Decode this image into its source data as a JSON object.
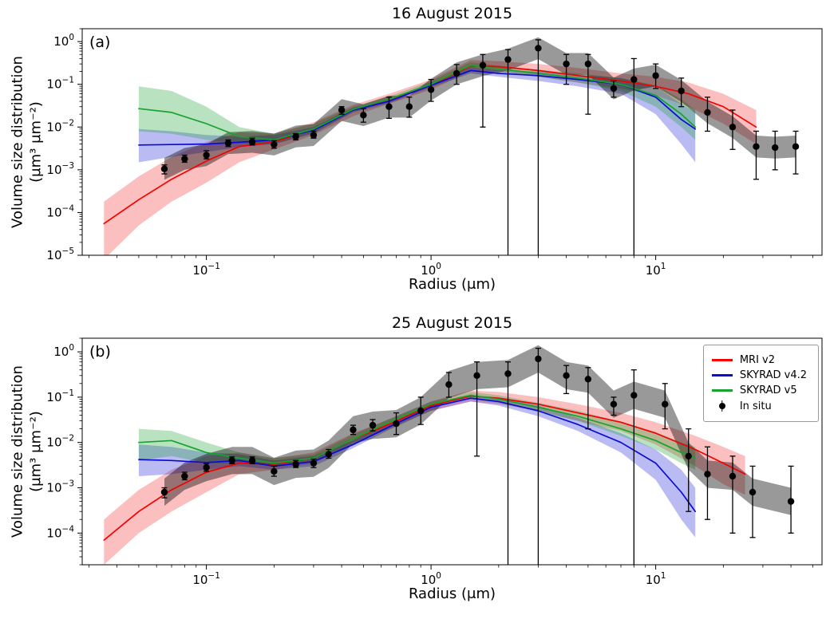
{
  "figure": {
    "background": "#ffffff",
    "ylabel_line1": "Volume size distribution",
    "ylabel_line2": "(μm³ μm⁻²)",
    "xlabel": "Radius (μm)"
  },
  "legend": {
    "position": "upper right",
    "entries": [
      {
        "label": "MRI v2",
        "color": "#f40000",
        "type": "line"
      },
      {
        "label": "SKYRAD v4.2",
        "color": "#0b0bd6",
        "type": "line"
      },
      {
        "label": "SKYRAD v5",
        "color": "#17a32e",
        "type": "line"
      },
      {
        "label": "In situ",
        "color": "#000000",
        "type": "marker"
      }
    ]
  },
  "chart_data": [
    {
      "type": "line",
      "panel_label": "(a)",
      "title": "16 August 2015",
      "xlabel": "Radius (μm)",
      "ylabel": "Volume size distribution (μm³ μm⁻²)",
      "x_scale": "log",
      "y_scale": "log",
      "xlim": [
        0.028,
        55
      ],
      "ylim": [
        1e-05,
        2
      ],
      "grid": false,
      "show_legend": false,
      "series": [
        {
          "name": "MRI v2",
          "color": "#f40000",
          "band_opacity": 0.25,
          "x": [
            0.035,
            0.05,
            0.07,
            0.1,
            0.14,
            0.2,
            0.3,
            0.45,
            0.65,
            1.0,
            1.5,
            2.0,
            3.0,
            4.5,
            7.0,
            10,
            14,
            20,
            28
          ],
          "y": [
            5.5e-05,
            0.0002,
            0.0006,
            0.0016,
            0.0035,
            0.0045,
            0.009,
            0.025,
            0.045,
            0.095,
            0.27,
            0.26,
            0.21,
            0.16,
            0.12,
            0.09,
            0.06,
            0.03,
            0.01
          ],
          "band_lo": [
            8e-06,
            5e-05,
            0.00018,
            0.0005,
            0.0015,
            0.003,
            0.0065,
            0.018,
            0.035,
            0.075,
            0.2,
            0.2,
            0.15,
            0.11,
            0.08,
            0.055,
            0.03,
            0.012,
            0.004
          ],
          "band_hi": [
            0.00018,
            0.0007,
            0.002,
            0.0045,
            0.0075,
            0.007,
            0.013,
            0.033,
            0.06,
            0.13,
            0.37,
            0.35,
            0.3,
            0.24,
            0.18,
            0.15,
            0.11,
            0.06,
            0.025
          ]
        },
        {
          "name": "SKYRAD v4.2",
          "color": "#0b0bd6",
          "band_opacity": 0.28,
          "x": [
            0.05,
            0.07,
            0.1,
            0.14,
            0.2,
            0.3,
            0.45,
            0.65,
            1.0,
            1.5,
            2.0,
            3.0,
            4.5,
            7.0,
            10,
            13,
            15
          ],
          "y": [
            0.0038,
            0.0039,
            0.004,
            0.0044,
            0.005,
            0.0085,
            0.025,
            0.04,
            0.095,
            0.21,
            0.18,
            0.16,
            0.13,
            0.1,
            0.05,
            0.015,
            0.009
          ],
          "band_lo": [
            0.0015,
            0.002,
            0.0026,
            0.0034,
            0.004,
            0.007,
            0.022,
            0.036,
            0.085,
            0.18,
            0.15,
            0.12,
            0.09,
            0.06,
            0.02,
            0.004,
            0.0015
          ],
          "band_hi": [
            0.009,
            0.008,
            0.0065,
            0.006,
            0.0065,
            0.01,
            0.028,
            0.045,
            0.11,
            0.25,
            0.21,
            0.2,
            0.17,
            0.14,
            0.09,
            0.035,
            0.022
          ]
        },
        {
          "name": "SKYRAD v5",
          "color": "#17a32e",
          "band_opacity": 0.3,
          "x": [
            0.05,
            0.07,
            0.1,
            0.14,
            0.2,
            0.3,
            0.45,
            0.65,
            1.0,
            1.5,
            2.0,
            3.0,
            4.5,
            7.0,
            10,
            13,
            15
          ],
          "y": [
            0.027,
            0.022,
            0.012,
            0.006,
            0.005,
            0.009,
            0.026,
            0.045,
            0.1,
            0.28,
            0.23,
            0.18,
            0.14,
            0.1,
            0.055,
            0.02,
            0.01
          ],
          "band_lo": [
            0.008,
            0.007,
            0.005,
            0.0042,
            0.004,
            0.0075,
            0.023,
            0.04,
            0.09,
            0.24,
            0.2,
            0.15,
            0.11,
            0.07,
            0.03,
            0.01,
            0.005
          ],
          "band_hi": [
            0.09,
            0.07,
            0.03,
            0.01,
            0.007,
            0.012,
            0.03,
            0.052,
            0.12,
            0.33,
            0.27,
            0.22,
            0.18,
            0.14,
            0.095,
            0.045,
            0.025
          ]
        }
      ],
      "insitu": {
        "name": "In situ",
        "color": "#000000",
        "band_opacity": 0.4,
        "band_factor": 1.8,
        "x": [
          0.065,
          0.08,
          0.1,
          0.125,
          0.16,
          0.2,
          0.25,
          0.3,
          0.4,
          0.5,
          0.65,
          0.8,
          1.0,
          1.3,
          1.7,
          2.2,
          3.0,
          4.0,
          5.0,
          6.5,
          8.0,
          10,
          13,
          17,
          22,
          28,
          34,
          42
        ],
        "y": [
          0.00105,
          0.0018,
          0.0022,
          0.0042,
          0.0045,
          0.0039,
          0.006,
          0.0065,
          0.025,
          0.019,
          0.03,
          0.03,
          0.075,
          0.18,
          0.28,
          0.38,
          0.7,
          0.3,
          0.3,
          0.08,
          0.13,
          0.16,
          0.07,
          0.022,
          0.01,
          0.0035,
          0.0033,
          0.0035
        ],
        "err_lo": [
          0.0008,
          0.0015,
          0.0018,
          0.0035,
          0.0038,
          0.0032,
          0.005,
          0.0055,
          0.02,
          0.013,
          0.016,
          0.017,
          0.04,
          0.1,
          0.01,
          1e-06,
          1e-06,
          0.1,
          0.02,
          0.05,
          1e-06,
          0.08,
          0.03,
          0.008,
          0.003,
          0.0006,
          0.001,
          0.0008
        ],
        "err_hi": [
          0.0013,
          0.0022,
          0.0028,
          0.005,
          0.0055,
          0.0048,
          0.007,
          0.008,
          0.03,
          0.027,
          0.05,
          0.05,
          0.13,
          0.29,
          0.5,
          0.65,
          1.1,
          0.5,
          0.5,
          0.12,
          0.4,
          0.3,
          0.14,
          0.05,
          0.025,
          0.008,
          0.008,
          0.008
        ]
      }
    },
    {
      "type": "line",
      "panel_label": "(b)",
      "title": "25 August 2015",
      "xlabel": "Radius (μm)",
      "ylabel": "Volume size distribution (μm³ μm⁻²)",
      "x_scale": "log",
      "y_scale": "log",
      "xlim": [
        0.028,
        55
      ],
      "ylim": [
        2e-05,
        2
      ],
      "grid": false,
      "show_legend": true,
      "series": [
        {
          "name": "MRI v2",
          "color": "#f40000",
          "band_opacity": 0.25,
          "x": [
            0.035,
            0.05,
            0.07,
            0.1,
            0.14,
            0.2,
            0.3,
            0.45,
            0.65,
            1.0,
            1.5,
            2.0,
            3.0,
            4.5,
            7.0,
            10,
            15,
            20,
            25
          ],
          "y": [
            7e-05,
            0.0003,
            0.0009,
            0.0022,
            0.0035,
            0.0033,
            0.0045,
            0.012,
            0.025,
            0.065,
            0.105,
            0.095,
            0.07,
            0.045,
            0.028,
            0.016,
            0.007,
            0.0035,
            0.002
          ],
          "band_lo": [
            2e-05,
            0.0001,
            0.0003,
            0.0008,
            0.002,
            0.0025,
            0.0035,
            0.009,
            0.02,
            0.05,
            0.08,
            0.07,
            0.05,
            0.03,
            0.018,
            0.009,
            0.003,
            0.0012,
            0.0007
          ],
          "band_hi": [
            0.0002,
            0.0009,
            0.0025,
            0.005,
            0.006,
            0.0045,
            0.006,
            0.016,
            0.032,
            0.08,
            0.14,
            0.13,
            0.1,
            0.07,
            0.045,
            0.028,
            0.014,
            0.008,
            0.005
          ]
        },
        {
          "name": "SKYRAD v4.2",
          "color": "#0b0bd6",
          "band_opacity": 0.28,
          "x": [
            0.05,
            0.07,
            0.1,
            0.14,
            0.2,
            0.3,
            0.45,
            0.65,
            1.0,
            1.5,
            2.0,
            3.0,
            4.5,
            7.0,
            10,
            13,
            15
          ],
          "y": [
            0.0042,
            0.004,
            0.0036,
            0.004,
            0.003,
            0.0038,
            0.009,
            0.022,
            0.06,
            0.095,
            0.08,
            0.05,
            0.025,
            0.01,
            0.0035,
            0.0008,
            0.0003
          ],
          "band_lo": [
            0.0018,
            0.002,
            0.0025,
            0.003,
            0.0025,
            0.003,
            0.0075,
            0.019,
            0.05,
            0.08,
            0.065,
            0.038,
            0.018,
            0.006,
            0.0015,
            0.0002,
            8e-05
          ],
          "band_hi": [
            0.009,
            0.008,
            0.006,
            0.0055,
            0.004,
            0.005,
            0.011,
            0.026,
            0.07,
            0.11,
            0.1,
            0.065,
            0.035,
            0.016,
            0.007,
            0.0025,
            0.001
          ]
        },
        {
          "name": "SKYRAD v5",
          "color": "#17a32e",
          "band_opacity": 0.3,
          "x": [
            0.05,
            0.07,
            0.1,
            0.14,
            0.2,
            0.3,
            0.45,
            0.65,
            1.0,
            1.5,
            2.0,
            3.0,
            4.5,
            7.0,
            10,
            13,
            15
          ],
          "y": [
            0.01,
            0.011,
            0.006,
            0.0045,
            0.0035,
            0.0045,
            0.012,
            0.028,
            0.07,
            0.11,
            0.09,
            0.06,
            0.038,
            0.02,
            0.011,
            0.006,
            0.0045
          ],
          "band_lo": [
            0.004,
            0.005,
            0.0035,
            0.0035,
            0.003,
            0.0038,
            0.01,
            0.024,
            0.06,
            0.09,
            0.075,
            0.048,
            0.03,
            0.014,
            0.007,
            0.0035,
            0.0025
          ],
          "band_hi": [
            0.02,
            0.018,
            0.01,
            0.006,
            0.0045,
            0.0055,
            0.015,
            0.033,
            0.08,
            0.13,
            0.11,
            0.075,
            0.05,
            0.028,
            0.017,
            0.01,
            0.008
          ]
        }
      ],
      "insitu": {
        "name": "In situ",
        "color": "#000000",
        "band_opacity": 0.4,
        "band_factor": 2.0,
        "x": [
          0.065,
          0.08,
          0.1,
          0.13,
          0.16,
          0.2,
          0.25,
          0.3,
          0.35,
          0.45,
          0.55,
          0.7,
          0.9,
          1.2,
          1.6,
          2.2,
          3.0,
          4.0,
          5.0,
          6.5,
          8.0,
          11,
          14,
          17,
          22,
          27,
          40
        ],
        "y": [
          0.0008,
          0.0018,
          0.0028,
          0.004,
          0.004,
          0.0023,
          0.0033,
          0.0035,
          0.0055,
          0.019,
          0.024,
          0.026,
          0.05,
          0.19,
          0.3,
          0.33,
          0.7,
          0.3,
          0.25,
          0.07,
          0.11,
          0.07,
          0.005,
          0.002,
          0.0018,
          0.0008,
          0.0005
        ],
        "err_lo": [
          0.0006,
          0.0015,
          0.0023,
          0.0034,
          0.0034,
          0.0018,
          0.0028,
          0.0028,
          0.0045,
          0.015,
          0.018,
          0.015,
          0.025,
          0.1,
          0.005,
          1e-06,
          1e-06,
          0.12,
          0.02,
          0.04,
          1e-06,
          0.02,
          0.0003,
          0.0002,
          0.0001,
          8e-05,
          0.0001
        ],
        "err_hi": [
          0.001,
          0.0022,
          0.0034,
          0.0048,
          0.0048,
          0.003,
          0.004,
          0.0043,
          0.007,
          0.024,
          0.032,
          0.045,
          0.1,
          0.35,
          0.6,
          0.6,
          1.2,
          0.5,
          0.45,
          0.1,
          0.4,
          0.2,
          0.02,
          0.008,
          0.005,
          0.003,
          0.003
        ]
      }
    }
  ]
}
